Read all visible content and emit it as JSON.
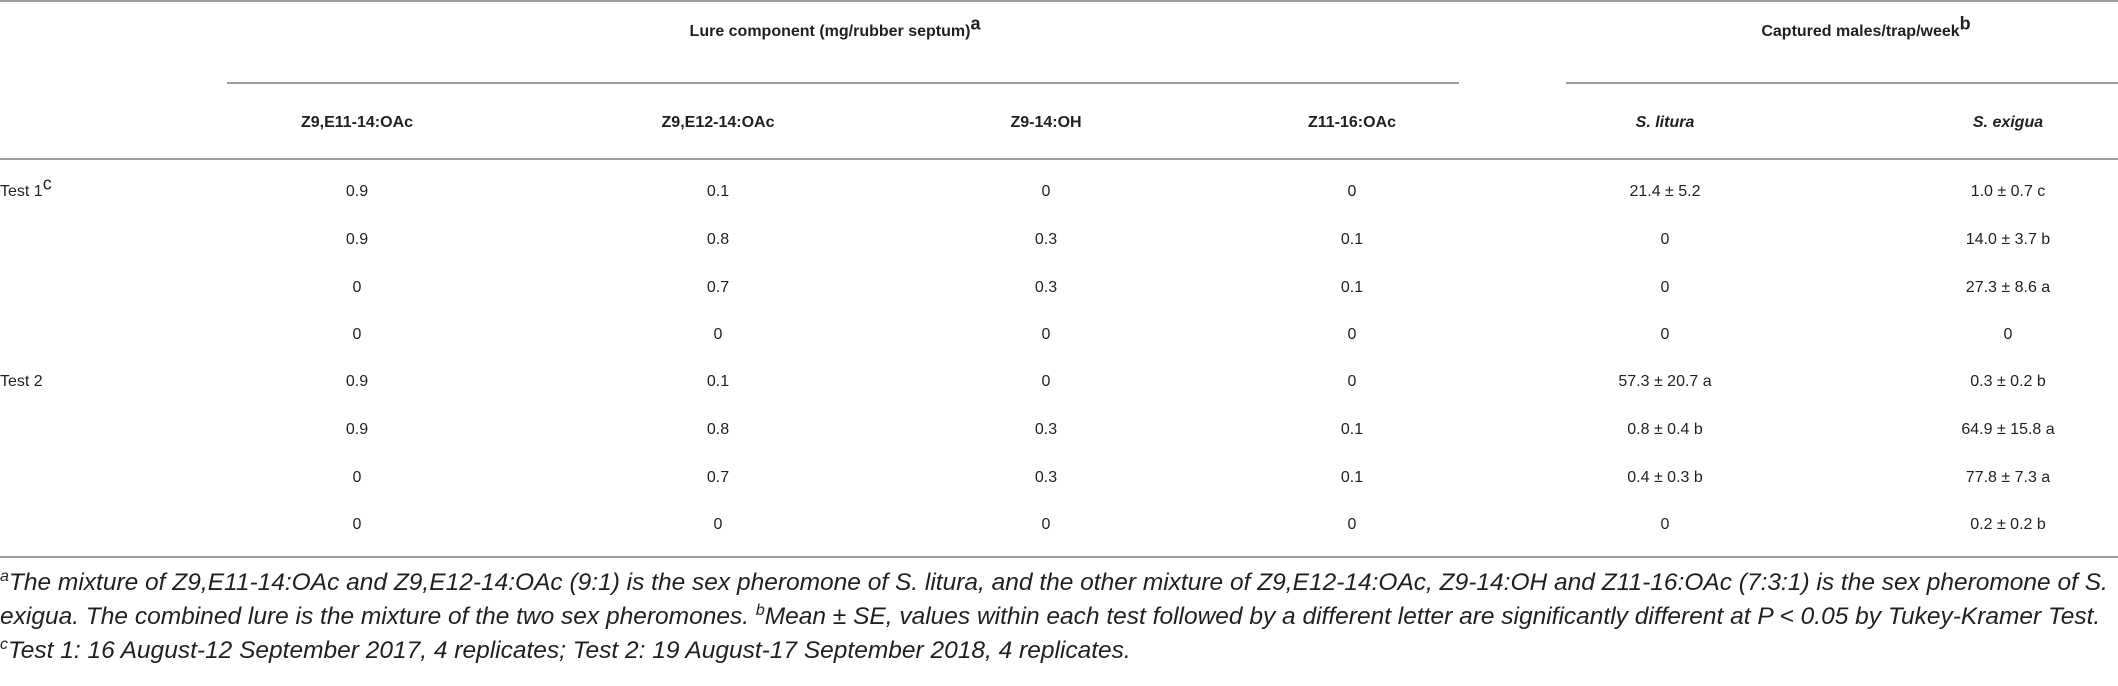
{
  "header": {
    "group_lure": "Lure component (mg/rubber septum)",
    "group_lure_sup": "a",
    "group_capture": "Captured males/trap/week",
    "group_capture_sup": "b",
    "columns": [
      "Z9,E11-14:OAc",
      "Z9,E12-14:OAc",
      "Z9-14:OH",
      "Z11-16:OAc",
      "S. litura",
      "S. exigua"
    ]
  },
  "rows": [
    {
      "test": "Test 1",
      "test_sup": "c",
      "cells": [
        "0.9",
        "0.1",
        "0",
        "0",
        "21.4 ± 5.2",
        "1.0 ± 0.7 c"
      ]
    },
    {
      "test": "",
      "test_sup": "",
      "cells": [
        "0.9",
        "0.8",
        "0.3",
        "0.1",
        "0",
        "14.0 ± 3.7 b"
      ]
    },
    {
      "test": "",
      "test_sup": "",
      "cells": [
        "0",
        "0.7",
        "0.3",
        "0.1",
        "0",
        "27.3 ± 8.6 a"
      ]
    },
    {
      "test": "",
      "test_sup": "",
      "cells": [
        "0",
        "0",
        "0",
        "0",
        "0",
        "0"
      ]
    },
    {
      "test": "Test 2",
      "test_sup": "",
      "cells": [
        "0.9",
        "0.1",
        "0",
        "0",
        "57.3 ± 20.7 a",
        "0.3 ± 0.2 b"
      ]
    },
    {
      "test": "",
      "test_sup": "",
      "cells": [
        "0.9",
        "0.8",
        "0.3",
        "0.1",
        "0.8 ± 0.4 b",
        "64.9 ± 15.8 a"
      ]
    },
    {
      "test": "",
      "test_sup": "",
      "cells": [
        "0",
        "0.7",
        "0.3",
        "0.1",
        "0.4 ± 0.3 b",
        "77.8 ± 7.3 a"
      ]
    },
    {
      "test": "",
      "test_sup": "",
      "cells": [
        "0",
        "0",
        "0",
        "0",
        "0",
        "0.2 ± 0.2 b"
      ]
    }
  ],
  "footnotes": {
    "a_sup": "a",
    "a_text": "The mixture of Z9,E11-14:OAc and Z9,E12-14:OAc (9:1) is the sex pheromone of S. litura, and the other mixture of Z9,E12-14:OAc, Z9-14:OH and Z11-16:OAc (7:3:1) is the sex pheromone of S. exigua. The combined lure is the mixture of the two sex pheromones.",
    "b_sup": "b",
    "b_text": "Mean ± SE, values within each test followed by a different letter are significantly different at P < 0.05 by Tukey-Kramer Test.",
    "c_sup": "c",
    "c_text": "Test 1: 16 August-12 September 2017, 4 replicates; Test 2: 19 August-17 September 2018, 4 replicates."
  }
}
